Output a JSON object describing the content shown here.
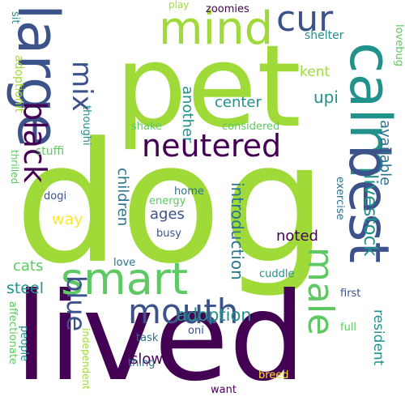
{
  "colors": {
    "purple": "#440154",
    "indigo": "#3b528b",
    "teal": "#21918c",
    "green": "#5ec962",
    "lime": "#a0da39",
    "yellow": "#fde725"
  },
  "words": [
    "dog",
    "lived",
    "pet",
    "large",
    "mind",
    "smart",
    "calm",
    "best",
    "cur",
    "neutered",
    "mix",
    "black",
    "mouth",
    "male",
    "blue",
    "adoption",
    "livestock",
    "available",
    "resident",
    "introduction",
    "children",
    "ages",
    "noted",
    "center",
    "another",
    "way",
    "kent",
    "upi",
    "steel",
    "slow",
    "cats",
    "shelter",
    "lovebug",
    "zoomies",
    "play",
    "sit",
    "adoptionit",
    "thoughi",
    "stuffi",
    "shake",
    "considered",
    "dogi",
    "home",
    "energy",
    "busy",
    "exercise",
    "thrilled",
    "love",
    "cuddle",
    "first",
    "full",
    "oni",
    "task",
    "thing",
    "people",
    "affectionate",
    "independent",
    "breed",
    "want"
  ]
}
